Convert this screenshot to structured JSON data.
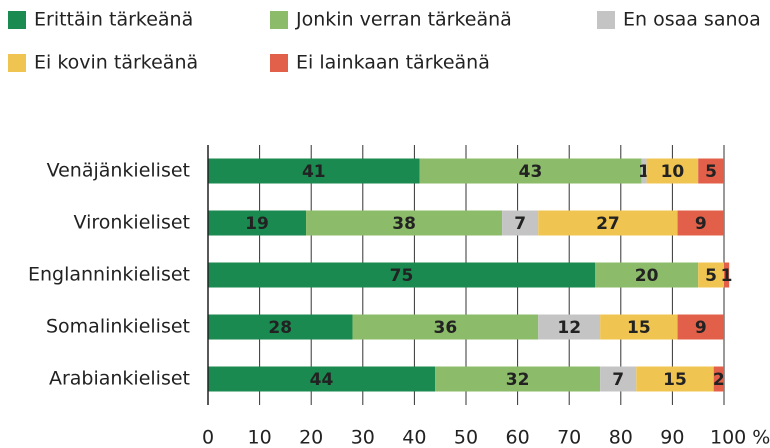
{
  "chart_data": {
    "type": "stacked-bar",
    "categories": [
      "Venäjänkieliset",
      "Vironkieliset",
      "Englanninkieliset",
      "Somalinkieliset",
      "Arabiankieliset"
    ],
    "series": [
      {
        "name": "Erittäin tärkeänä",
        "color": "#1b8a50",
        "values": [
          41,
          19,
          75,
          28,
          44
        ]
      },
      {
        "name": "Jonkin verran tärkeänä",
        "color": "#8cbb6a",
        "values": [
          43,
          38,
          20,
          36,
          32
        ]
      },
      {
        "name": "En osaa sanoa",
        "color": "#c4c4c4",
        "values": [
          1,
          7,
          null,
          12,
          7
        ]
      },
      {
        "name": "Ei kovin tärkeänä",
        "color": "#f0c450",
        "values": [
          10,
          27,
          5,
          15,
          15
        ]
      },
      {
        "name": "Ei lainkaan tärkeänä",
        "color": "#e2604a",
        "values": [
          5,
          9,
          1,
          9,
          2
        ]
      }
    ],
    "xlim": [
      0,
      100
    ],
    "xticks": [
      0,
      10,
      20,
      30,
      40,
      50,
      60,
      70,
      80,
      90,
      {
        "value": 100,
        "label": "100 %"
      }
    ],
    "grid": true
  }
}
